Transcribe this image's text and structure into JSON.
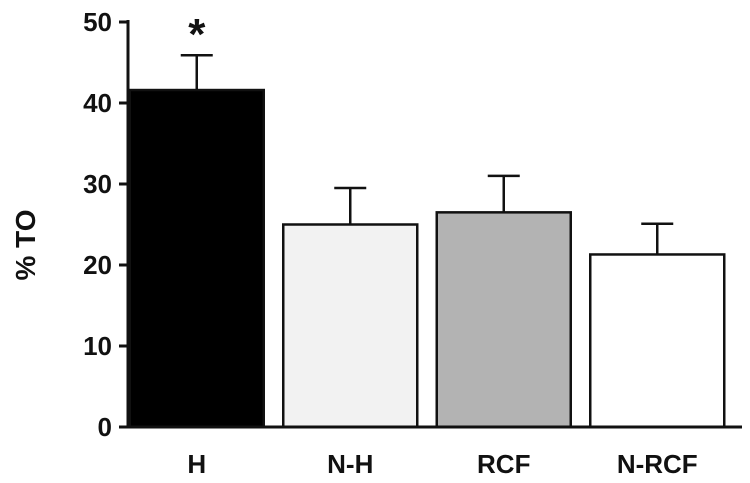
{
  "chart_data": {
    "type": "bar",
    "title": "",
    "xlabel": "",
    "ylabel": "% TO",
    "ylim": [
      0,
      50
    ],
    "yticks": [
      0,
      10,
      20,
      30,
      40,
      50
    ],
    "categories": [
      "H",
      "N-H",
      "RCF",
      "N-RCF"
    ],
    "values": [
      41.6,
      25.0,
      26.5,
      21.3
    ],
    "error": [
      4.3,
      4.5,
      4.5,
      3.8
    ],
    "bar_colors": [
      "#000000",
      "#f2f2f2",
      "#b3b3b3",
      "#ffffff"
    ],
    "annotations": [
      {
        "category": "H",
        "text": "*"
      }
    ],
    "grid": false,
    "legend": "none"
  }
}
